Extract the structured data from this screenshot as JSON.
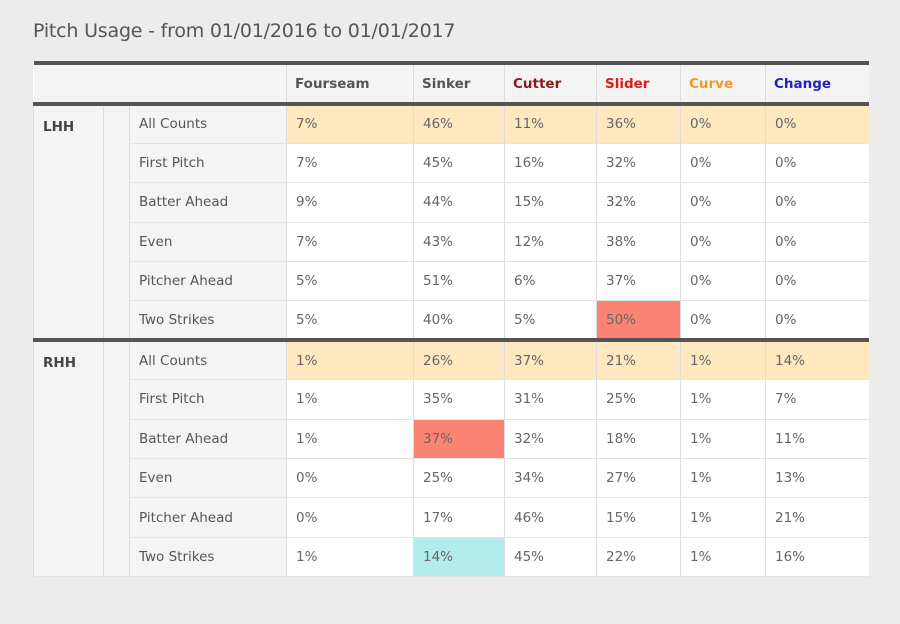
{
  "title": "Pitch Usage - from 01/01/2016 to 01/01/2017",
  "colors": {
    "Fourseam": "#555555",
    "Sinker": "#555555",
    "Cutter": "#8b1a1a",
    "Slider": "#e31b1b",
    "Curve": "#f29a1f",
    "Change": "#1f23c4",
    "summary_row": "#fde8c0",
    "high_highlight": "#fa8473",
    "low_highlight": "#b2ecec"
  },
  "chart_data": {
    "type": "table",
    "columns": [
      "Fourseam",
      "Sinker",
      "Cutter",
      "Slider",
      "Curve",
      "Change"
    ],
    "groups": [
      {
        "hand": "LHH",
        "rows": [
          {
            "count": "All Counts",
            "values": [
              "7%",
              "46%",
              "11%",
              "36%",
              "0%",
              "0%"
            ],
            "summary": true,
            "highlights": [
              null,
              null,
              null,
              null,
              null,
              null
            ]
          },
          {
            "count": "First Pitch",
            "values": [
              "7%",
              "45%",
              "16%",
              "32%",
              "0%",
              "0%"
            ],
            "summary": false,
            "highlights": [
              null,
              null,
              null,
              null,
              null,
              null
            ]
          },
          {
            "count": "Batter Ahead",
            "values": [
              "9%",
              "44%",
              "15%",
              "32%",
              "0%",
              "0%"
            ],
            "summary": false,
            "highlights": [
              null,
              null,
              null,
              null,
              null,
              null
            ]
          },
          {
            "count": "Even",
            "values": [
              "7%",
              "43%",
              "12%",
              "38%",
              "0%",
              "0%"
            ],
            "summary": false,
            "highlights": [
              null,
              null,
              null,
              null,
              null,
              null
            ]
          },
          {
            "count": "Pitcher Ahead",
            "values": [
              "5%",
              "51%",
              "6%",
              "37%",
              "0%",
              "0%"
            ],
            "summary": false,
            "highlights": [
              null,
              null,
              null,
              null,
              null,
              null
            ]
          },
          {
            "count": "Two Strikes",
            "values": [
              "5%",
              "40%",
              "5%",
              "50%",
              "0%",
              "0%"
            ],
            "summary": false,
            "highlights": [
              null,
              null,
              null,
              "high",
              null,
              null
            ]
          }
        ]
      },
      {
        "hand": "RHH",
        "rows": [
          {
            "count": "All Counts",
            "values": [
              "1%",
              "26%",
              "37%",
              "21%",
              "1%",
              "14%"
            ],
            "summary": true,
            "highlights": [
              null,
              null,
              null,
              null,
              null,
              null
            ]
          },
          {
            "count": "First Pitch",
            "values": [
              "1%",
              "35%",
              "31%",
              "25%",
              "1%",
              "7%"
            ],
            "summary": false,
            "highlights": [
              null,
              null,
              null,
              null,
              null,
              null
            ]
          },
          {
            "count": "Batter Ahead",
            "values": [
              "1%",
              "37%",
              "32%",
              "18%",
              "1%",
              "11%"
            ],
            "summary": false,
            "highlights": [
              null,
              "high",
              null,
              null,
              null,
              null
            ]
          },
          {
            "count": "Even",
            "values": [
              "0%",
              "25%",
              "34%",
              "27%",
              "1%",
              "13%"
            ],
            "summary": false,
            "highlights": [
              null,
              null,
              null,
              null,
              null,
              null
            ]
          },
          {
            "count": "Pitcher Ahead",
            "values": [
              "0%",
              "17%",
              "46%",
              "15%",
              "1%",
              "21%"
            ],
            "summary": false,
            "highlights": [
              null,
              null,
              null,
              null,
              null,
              null
            ]
          },
          {
            "count": "Two Strikes",
            "values": [
              "1%",
              "14%",
              "45%",
              "22%",
              "1%",
              "16%"
            ],
            "summary": false,
            "highlights": [
              null,
              "low",
              null,
              null,
              null,
              null
            ]
          }
        ]
      }
    ]
  }
}
